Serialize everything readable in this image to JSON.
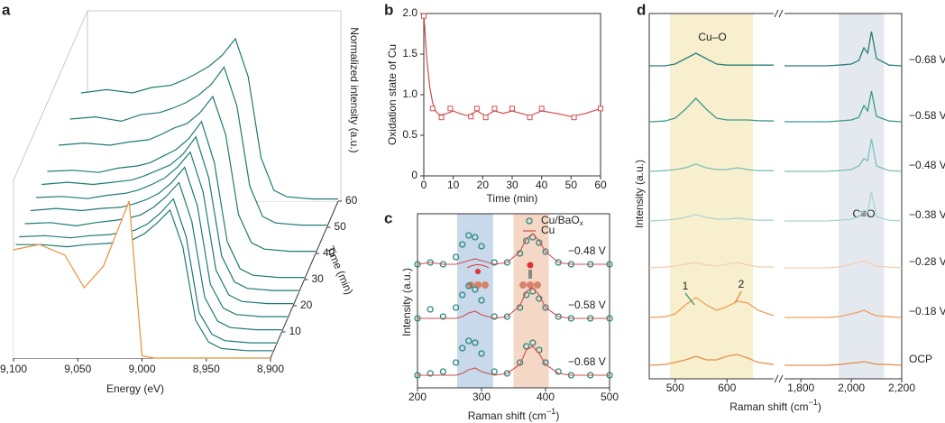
{
  "chart_data": [
    {
      "type": "waterfall",
      "letter": "a",
      "xlabel": "Energy (eV)",
      "ylabel": "Normalized intensity (a.u.)",
      "zlabel": "Time (min)",
      "xlim": [
        9100,
        8900
      ],
      "xticks": [
        {
          "value": 9100,
          "label": "9,100"
        },
        {
          "value": 9050,
          "label": "9,050"
        },
        {
          "value": 9000,
          "label": "9,000"
        },
        {
          "value": 8950,
          "label": "8,950"
        },
        {
          "value": 8900,
          "label": "8,900"
        }
      ],
      "zticks": [
        10,
        20,
        30,
        40,
        50,
        60
      ],
      "x": [
        9100,
        9080,
        9060,
        9045,
        9030,
        9020,
        9010,
        9000,
        8990,
        8980,
        8970,
        8960,
        8950,
        8940,
        8920,
        8900
      ],
      "reference": {
        "color": "#e8913a",
        "values": [
          1.0,
          1.05,
          0.95,
          0.65,
          0.85,
          1.15,
          1.45,
          0.02,
          0,
          0,
          0,
          0,
          0,
          0,
          0,
          0
        ]
      },
      "color": "#1f7a75",
      "curves": [
        {
          "time": 60,
          "values": [
            1.0,
            1.03,
            1.0,
            1.05,
            1.07,
            1.12,
            1.18,
            1.25,
            1.35,
            1.5,
            1.15,
            0.4,
            0.1,
            0.04,
            0.02,
            0.02
          ]
        },
        {
          "time": 50,
          "values": [
            1.0,
            1.02,
            0.98,
            1.04,
            1.06,
            1.1,
            1.15,
            1.22,
            1.32,
            1.48,
            1.12,
            0.38,
            0.1,
            0.04,
            0.02,
            0.02
          ]
        },
        {
          "time": 40,
          "values": [
            1.0,
            1.02,
            1.0,
            1.03,
            1.05,
            1.1,
            1.16,
            1.2,
            1.3,
            1.45,
            1.1,
            0.36,
            0.1,
            0.04,
            0.02,
            0.02
          ]
        },
        {
          "time": 30,
          "values": [
            1.0,
            1.01,
            0.99,
            1.03,
            1.05,
            1.08,
            1.14,
            1.2,
            1.3,
            1.46,
            1.08,
            0.35,
            0.1,
            0.04,
            0.02,
            0.02
          ]
        },
        {
          "time": 25,
          "values": [
            1.0,
            1.02,
            1.0,
            1.02,
            1.04,
            1.08,
            1.13,
            1.18,
            1.28,
            1.44,
            1.06,
            0.34,
            0.1,
            0.04,
            0.02,
            0.02
          ]
        },
        {
          "time": 20,
          "values": [
            1.0,
            1.01,
            0.99,
            1.02,
            1.04,
            1.07,
            1.12,
            1.18,
            1.28,
            1.42,
            1.05,
            0.33,
            0.1,
            0.04,
            0.02,
            0.02
          ]
        },
        {
          "time": 15,
          "values": [
            1.0,
            1.02,
            1.0,
            1.02,
            1.03,
            1.06,
            1.1,
            1.16,
            1.26,
            1.4,
            1.04,
            0.32,
            0.1,
            0.04,
            0.02,
            0.02
          ]
        },
        {
          "time": 10,
          "values": [
            1.0,
            1.01,
            0.98,
            1.01,
            1.03,
            1.05,
            1.08,
            1.15,
            1.25,
            1.38,
            1.02,
            0.32,
            0.1,
            0.04,
            0.02,
            0.02
          ]
        },
        {
          "time": 5,
          "values": [
            1.0,
            1.01,
            0.99,
            1.01,
            1.02,
            1.04,
            1.06,
            1.12,
            1.22,
            1.35,
            1.0,
            0.3,
            0.1,
            0.04,
            0.02,
            0.02
          ]
        },
        {
          "time": 2,
          "values": [
            1.0,
            1.0,
            0.98,
            1.0,
            1.01,
            1.02,
            1.04,
            1.1,
            1.2,
            1.32,
            0.98,
            0.3,
            0.1,
            0.04,
            0.02,
            0.02
          ]
        }
      ]
    },
    {
      "type": "line",
      "letter": "b",
      "xlabel": "Time (min)",
      "ylabel": "Oxidation state of Cu",
      "color": "#d0504f",
      "xlim": [
        0,
        60
      ],
      "ylim": [
        0,
        2
      ],
      "xticks": [
        0,
        10,
        20,
        30,
        40,
        50,
        60
      ],
      "yticks": [
        0,
        0.5,
        {
          "value": 1,
          "label": "1.0"
        },
        1.5,
        {
          "value": 2,
          "label": "2.0"
        }
      ],
      "markers": {
        "x": [
          0,
          3,
          6,
          9,
          16,
          18,
          21,
          24,
          30,
          36,
          40,
          51,
          60
        ],
        "values": [
          1.97,
          0.83,
          0.72,
          0.83,
          0.73,
          0.83,
          0.72,
          0.83,
          0.83,
          0.72,
          0.83,
          0.72,
          0.83
        ]
      },
      "fit": {
        "x": [
          0,
          1,
          2,
          3,
          4,
          5,
          6,
          8,
          10,
          12,
          15,
          18,
          21,
          24,
          27,
          30,
          33,
          36,
          40,
          45,
          50,
          55,
          60
        ],
        "values": [
          2.0,
          1.45,
          1.1,
          0.9,
          0.8,
          0.76,
          0.75,
          0.77,
          0.8,
          0.77,
          0.74,
          0.8,
          0.74,
          0.8,
          0.77,
          0.8,
          0.77,
          0.74,
          0.8,
          0.77,
          0.73,
          0.77,
          0.83
        ]
      }
    },
    {
      "type": "spectra",
      "letter": "c",
      "xlabel": "Raman shift (cm",
      "xlabel_sup": "−1",
      "xlabel_end": ")",
      "ylabel": "Intensity (a.u.)",
      "xlim": [
        200,
        500
      ],
      "xticks": [
        200,
        300,
        400,
        500
      ],
      "bands": [
        {
          "from": 262,
          "to": 318,
          "color": "#b9d0e6"
        },
        {
          "from": 350,
          "to": 405,
          "color": "#f2cdb8"
        }
      ],
      "potentials": [
        "−0.48 V",
        "−0.58 V",
        "−0.68 V"
      ],
      "x": [
        200,
        220,
        240,
        260,
        270,
        280,
        290,
        300,
        320,
        340,
        360,
        370,
        380,
        390,
        400,
        420,
        440,
        470,
        500
      ],
      "series": [
        {
          "name": "Cu/BaO",
          "name_sub": "x",
          "color": "#2a8a80",
          "style": "markers",
          "values": [
            [
              0.05,
              0.1,
              0.05,
              0.25,
              0.6,
              0.85,
              0.8,
              0.55,
              0.1,
              0.1,
              0.35,
              0.7,
              0.8,
              0.65,
              0.4,
              0.1,
              0.05,
              0.05,
              0.05
            ],
            [
              0.05,
              0.3,
              0.1,
              0.35,
              0.7,
              0.95,
              0.85,
              0.55,
              0.1,
              0.1,
              0.35,
              0.7,
              0.8,
              0.6,
              0.35,
              0.1,
              0.05,
              0.05,
              0.05
            ],
            [
              0.05,
              0.1,
              0.15,
              0.4,
              0.8,
              1.0,
              0.95,
              0.65,
              0.15,
              0.1,
              0.4,
              0.85,
              0.95,
              0.75,
              0.4,
              0.15,
              0.05,
              0.05,
              0.05
            ]
          ]
        },
        {
          "name": "Cu",
          "color": "#d0504f",
          "style": "line",
          "values": [
            [
              0.05,
              0.1,
              0.05,
              0.05,
              0.1,
              0.15,
              0.2,
              0.15,
              0.05,
              0.1,
              0.4,
              0.75,
              0.9,
              0.7,
              0.4,
              0.1,
              0.05,
              0.05,
              0.05
            ],
            [
              0.05,
              0.05,
              0.05,
              0.05,
              0.1,
              0.2,
              0.25,
              0.15,
              0.05,
              0.1,
              0.4,
              0.8,
              0.9,
              0.7,
              0.35,
              0.1,
              0.05,
              0.05,
              0.05
            ],
            [
              0.05,
              0.05,
              0.05,
              0.05,
              0.1,
              0.2,
              0.25,
              0.15,
              0.05,
              0.1,
              0.35,
              0.75,
              0.85,
              0.65,
              0.35,
              0.1,
              0.05,
              0.05,
              0.05
            ]
          ]
        }
      ]
    },
    {
      "type": "broken-spectra",
      "letter": "d",
      "xlabel": "Raman shift (cm",
      "xlabel_sup": "−1",
      "xlabel_end": ")",
      "ylabel": "Intensity (a.u.)",
      "xlim_left": [
        450,
        690
      ],
      "xlim_right": [
        1735,
        2200
      ],
      "xticks_left": [
        500,
        600
      ],
      "xticks_right": [
        {
          "value": 1800,
          "label": "1,800"
        },
        {
          "value": 2000,
          "label": "2,000"
        },
        {
          "value": 2200,
          "label": "2,200"
        }
      ],
      "bands": [
        {
          "from": 490,
          "to": 650,
          "color": "#f7efcd",
          "label": "Cu–O"
        },
        {
          "from": 1950,
          "to": 2130,
          "color": "#e3e9ee",
          "label": "C≡O"
        }
      ],
      "annotations": [
        {
          "text": "1",
          "color": "#1f9a6a"
        },
        {
          "text": "2",
          "color": "#e0803a"
        }
      ],
      "label_color": "#2a9a7a",
      "x_left": [
        450,
        480,
        500,
        520,
        540,
        560,
        580,
        600,
        620,
        640,
        660,
        690
      ],
      "x_right": [
        1735,
        1800,
        1900,
        1950,
        2000,
        2030,
        2050,
        2065,
        2080,
        2100,
        2150,
        2200
      ],
      "series": [
        {
          "name": "−0.68 V",
          "color": "#2a7f7a",
          "left": [
            0,
            0,
            0.05,
            0.2,
            0.35,
            0.2,
            0.05,
            0.02,
            0.02,
            0.02,
            0.02,
            0.02
          ],
          "right": [
            0,
            0,
            0,
            0.02,
            0.05,
            0.15,
            0.5,
            0.35,
            0.95,
            0.2,
            0.02,
            0
          ]
        },
        {
          "name": "−0.58 V",
          "color": "#3f9a90",
          "left": [
            0,
            0.02,
            0.1,
            0.35,
            0.65,
            0.35,
            0.1,
            0.05,
            0.05,
            0.05,
            0.03,
            0.02
          ],
          "right": [
            0,
            0,
            0,
            0.02,
            0.05,
            0.12,
            0.45,
            0.3,
            0.85,
            0.15,
            0.02,
            0
          ]
        },
        {
          "name": "−0.48 V",
          "color": "#7fbfb8",
          "left": [
            0,
            0.02,
            0.05,
            0.1,
            0.2,
            0.1,
            0.05,
            0.05,
            0.1,
            0.05,
            0.02,
            0.02
          ],
          "right": [
            0,
            0,
            0,
            0.02,
            0.05,
            0.15,
            0.35,
            0.3,
            0.9,
            0.15,
            0.02,
            0
          ]
        },
        {
          "name": "−0.38 V",
          "color": "#a9d5cf",
          "left": [
            0,
            0.02,
            0.05,
            0.1,
            0.18,
            0.1,
            0.05,
            0.05,
            0.08,
            0.05,
            0.02,
            0.02
          ],
          "right": [
            0,
            0,
            0,
            0.02,
            0.05,
            0.12,
            0.3,
            0.25,
            0.8,
            0.12,
            0.02,
            0
          ]
        },
        {
          "name": "−0.28 V",
          "color": "#f5d0b5",
          "left": [
            0,
            0.02,
            0.05,
            0.1,
            0.15,
            0.08,
            0.05,
            0.1,
            0.15,
            0.08,
            0.03,
            0.02
          ],
          "right": [
            0,
            0,
            0,
            0.02,
            0.1,
            0.15,
            0.2,
            0.15,
            0.1,
            0.05,
            0.02,
            0
          ]
        },
        {
          "name": "−0.18 V",
          "color": "#f0a060",
          "left": [
            0,
            0.02,
            0.1,
            0.35,
            0.55,
            0.35,
            0.2,
            0.3,
            0.45,
            0.4,
            0.2,
            0.05
          ],
          "right": [
            0,
            0,
            0,
            0.02,
            0.1,
            0.15,
            0.2,
            0.15,
            0.1,
            0.05,
            0.02,
            0
          ]
        },
        {
          "name": "OCP",
          "color": "#e89050",
          "left": [
            0,
            0.02,
            0.08,
            0.15,
            0.25,
            0.15,
            0.15,
            0.25,
            0.3,
            0.2,
            0.08,
            0.02
          ],
          "right": [
            0,
            0,
            0,
            0.02,
            0.06,
            0.08,
            0.1,
            0.08,
            0.06,
            0.03,
            0.02,
            0
          ]
        }
      ]
    }
  ]
}
